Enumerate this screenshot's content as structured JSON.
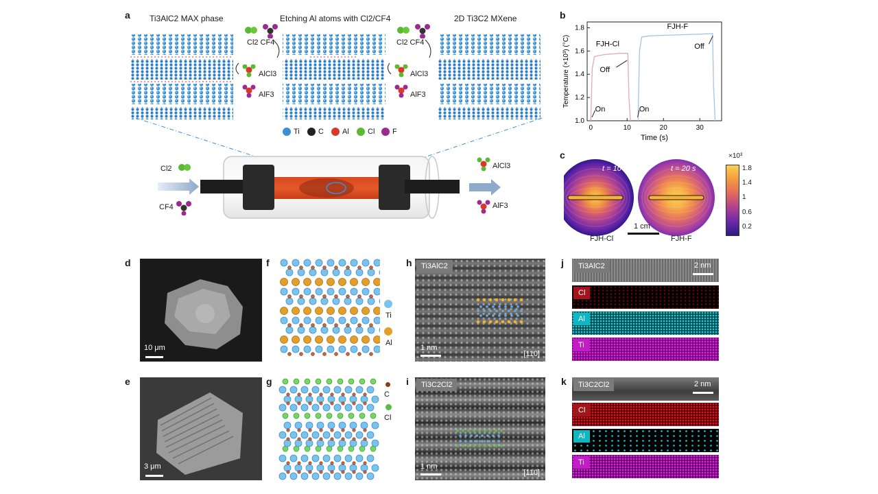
{
  "labels": {
    "a": "a",
    "b": "b",
    "c": "c",
    "d": "d",
    "e": "e",
    "f": "f",
    "g": "g",
    "h": "h",
    "i": "i",
    "j": "j",
    "k": "k"
  },
  "panel_a": {
    "max_phase": "Ti3AlC2 MAX phase",
    "etching": "Etching Al atoms with Cl2/CF4",
    "mxene": "2D Ti3C2 MXene",
    "reactants_left": "Cl2 CF4",
    "reactants_right": "Cl2 CF4",
    "alcl3": "AlCl3",
    "alf3": "AlF3",
    "legend": [
      "Ti",
      "C",
      "Al",
      "Cl",
      "F"
    ],
    "legend_colors": [
      "#3a8fd6",
      "#222222",
      "#d8392b",
      "#5fb832",
      "#9c2b8f"
    ],
    "reactor_in_cl2": "Cl2",
    "reactor_in_cf4": "CF4",
    "reactor_out_alcl3": "AlCl3",
    "reactor_out_alf3": "AlF3"
  },
  "chart_data": [
    {
      "type": "line",
      "panel": "b",
      "xlabel": "Time (s)",
      "ylabel": "Temperature (×10³) (°C)",
      "xlim": [
        -1,
        36
      ],
      "ylim": [
        1.0,
        1.85
      ],
      "xticks": [
        0,
        10,
        20,
        30
      ],
      "yticks": [
        1.0,
        1.2,
        1.4,
        1.6,
        1.8
      ],
      "series": [
        {
          "name": "FJH-Cl",
          "color": "#e2a9b8",
          "x": [
            0,
            0.4,
            1.0,
            2,
            4,
            6,
            8,
            10.2,
            10.5,
            10.9
          ],
          "y": [
            1.0,
            1.45,
            1.55,
            1.56,
            1.57,
            1.575,
            1.58,
            1.58,
            1.2,
            1.0
          ]
        },
        {
          "name": "FJH-F",
          "color": "#a7c1e5",
          "x": [
            13,
            13.4,
            14,
            16,
            20,
            25,
            30,
            33.5,
            33.8,
            34.2
          ],
          "y": [
            1.0,
            1.6,
            1.72,
            1.73,
            1.735,
            1.74,
            1.745,
            1.75,
            1.3,
            1.0
          ]
        }
      ],
      "annotations": [
        "On",
        "On",
        "Off",
        "Off",
        "FJH-Cl",
        "FJH-F"
      ],
      "annotation_text": {
        "on1": "On",
        "on2": "On",
        "off1": "Off",
        "off2": "Off",
        "fjhcl": "FJH-Cl",
        "fjhf": "FJH-F"
      }
    },
    {
      "type": "heatmap",
      "panel": "c",
      "colorbar_unit": "×10³",
      "colorbar_ticks": [
        1.8,
        1.4,
        1.0,
        0.6,
        0.2
      ],
      "maps": [
        {
          "label": "FJH-Cl",
          "time": "t = 10 s"
        },
        {
          "label": "FJH-F",
          "time": "t = 20 s"
        }
      ],
      "scalebar": "1 cm"
    }
  ],
  "panel_d": {
    "scale": "10 μm"
  },
  "panel_e": {
    "scale": "3 μm"
  },
  "panel_f": {
    "legend_ti": "Ti",
    "legend_al": "Al"
  },
  "panel_g": {
    "legend_c": "C",
    "legend_cl": "Cl"
  },
  "panel_h": {
    "tag": "Ti3AlC2",
    "scale": "1 nm",
    "zone": "[110]"
  },
  "panel_i": {
    "tag": "Ti3C2Cl2",
    "scale": "1 nm",
    "zone": "[110]"
  },
  "panel_j": {
    "tag": "Ti3AlC2",
    "scale": "2 nm",
    "maps": [
      "Cl",
      "Al",
      "Ti"
    ]
  },
  "panel_k": {
    "tag": "Ti3C2Cl2",
    "scale": "2 nm",
    "maps": [
      "Cl",
      "Al",
      "Ti"
    ]
  },
  "colors": {
    "ti": "#3a8fd6",
    "al": "#e2a02a",
    "cl": "#55c043",
    "c": "#8a3a1e",
    "eds_cl": "#c0141c",
    "eds_al": "#19c8d2",
    "eds_ti": "#c41dc7"
  }
}
